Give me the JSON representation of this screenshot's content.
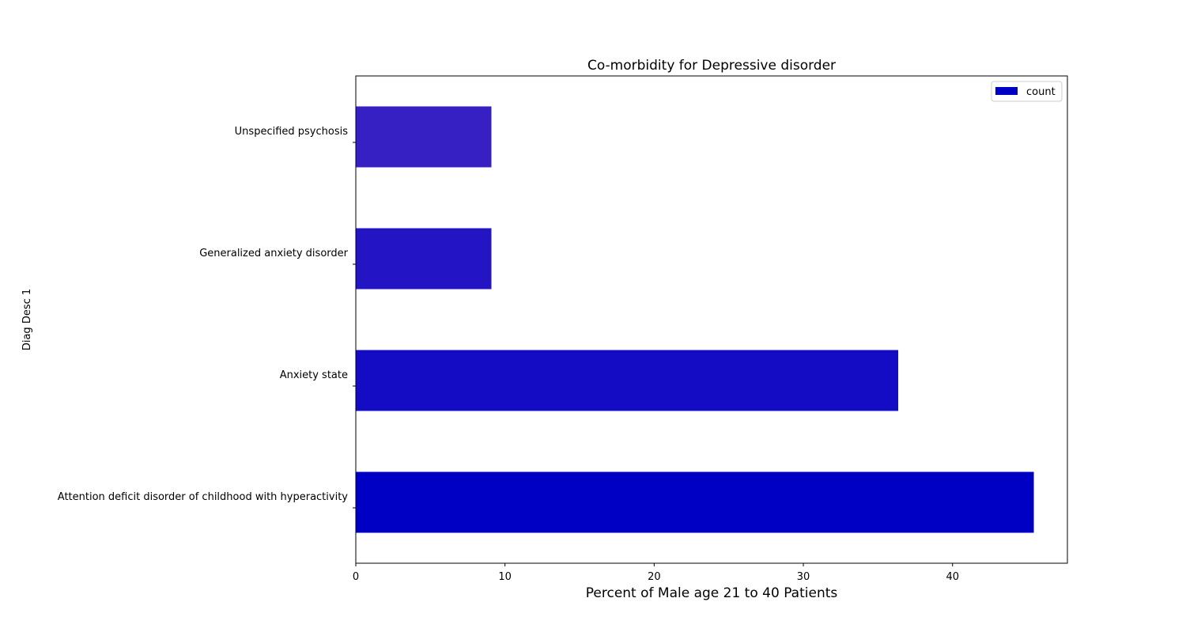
{
  "chart_data": {
    "type": "bar",
    "orientation": "horizontal",
    "title": "Co-morbidity for Depressive disorder",
    "xlabel": "Percent of Male age 21 to 40 Patients",
    "ylabel": "Diag Desc 1",
    "categories": [
      "Attention deficit disorder of childhood with hyperactivity",
      "Anxiety state",
      "Generalized anxiety disorder",
      "Unspecified psychosis"
    ],
    "series": [
      {
        "name": "count",
        "values": [
          45.45,
          36.36,
          9.09,
          9.09
        ],
        "colors": [
          "#0000c4",
          "#140cc4",
          "#2415c4",
          "#3620c4"
        ]
      }
    ],
    "legend_color": "#0000c4",
    "xlim": [
      0,
      47.7
    ],
    "xticks": [
      0,
      10,
      20,
      30,
      40
    ],
    "grid": false,
    "legend_position": "top-right"
  }
}
